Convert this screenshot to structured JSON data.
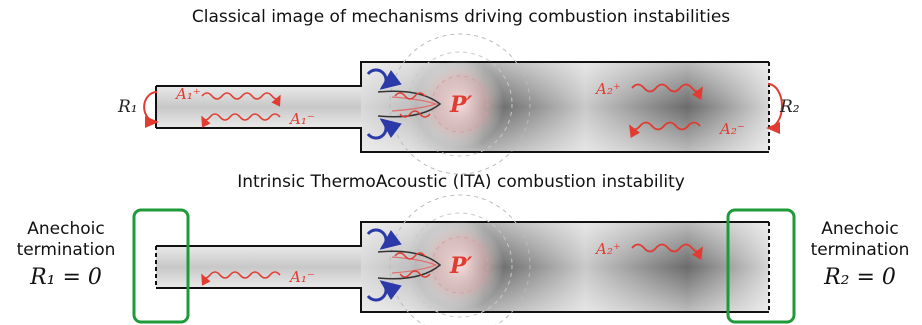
{
  "diagram_top": {
    "title": "Classical image of mechanisms driving combustion instabilities",
    "R1": "R₁",
    "R2": "R₂",
    "A1_plus": "A₁⁺",
    "A1_minus": "A₁⁻",
    "A2_plus": "A₂⁺",
    "A2_minus": "A₂⁻",
    "P": "P′"
  },
  "diagram_bottom": {
    "title": "Intrinsic ThermoAcoustic (ITA) combustion instability",
    "left_label_line1": "Anechoic",
    "left_label_line2": "termination",
    "left_eq": "R₁ = 0",
    "right_label_line1": "Anechoic",
    "right_label_line2": "termination",
    "right_eq": "R₂ = 0",
    "A1_minus": "A₁⁻",
    "A2_plus": "A₂⁺",
    "P": "P′"
  },
  "colors": {
    "wave": "#e03c31",
    "vortex": "#2b3aa8",
    "box": "#1f9a3a",
    "pipe_fill": "#9a9a9a"
  }
}
